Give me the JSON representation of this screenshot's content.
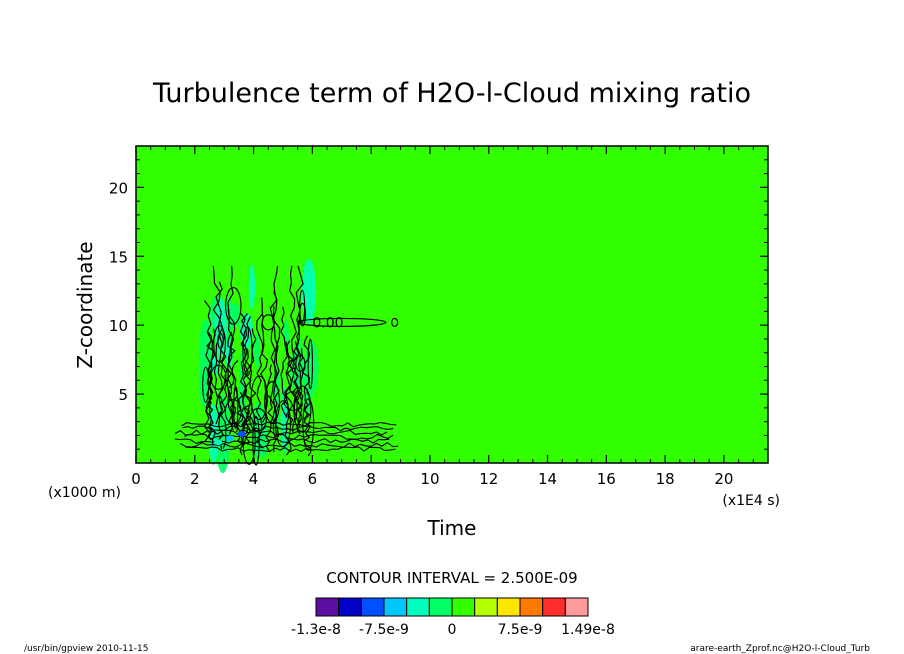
{
  "chart_data": {
    "type": "heatmap",
    "title": "Turbulence term of H2O-l-Cloud mixing ratio",
    "xlabel": "Time",
    "ylabel": "Z-coordinate",
    "x_unit_label": "(x1E4 s)",
    "y_unit_label": "(x1000 m)",
    "xlim": [
      0,
      21.5
    ],
    "ylim": [
      0,
      23
    ],
    "x_ticks": [
      0,
      2,
      4,
      6,
      8,
      10,
      12,
      14,
      16,
      18,
      20
    ],
    "y_ticks": [
      5,
      10,
      15,
      20
    ],
    "grid": false,
    "background_value": 0,
    "contour_interval_label": "CONTOUR INTERVAL = 2.500E-09",
    "inline_contour_label": "0.00",
    "colorbar": {
      "colors": [
        "#5b0fa0",
        "#0000c8",
        "#0050ff",
        "#00c8ff",
        "#00ffbe",
        "#00ff64",
        "#32ff00",
        "#b4ff00",
        "#ffe600",
        "#ff7800",
        "#ff2d2d",
        "#ff9b9b"
      ],
      "tick_labels": [
        "-1.3e-8",
        "-7.5e-9",
        "0",
        "7.5e-9",
        "1.49e-8"
      ]
    },
    "features": [
      {
        "x_range": [
          2.3,
          6.0
        ],
        "z_range": [
          0.5,
          14.3
        ],
        "description": "active turbulence region with dense contours"
      },
      {
        "x_range": [
          1.3,
          9.0
        ],
        "z_range": [
          1.0,
          2.8
        ],
        "description": "low-level contour band"
      },
      {
        "x_range": [
          5.5,
          8.5
        ],
        "z_range": [
          9.8,
          10.6
        ],
        "description": "elongated contour at z ~ 10"
      }
    ]
  },
  "footer": {
    "left": "/usr/bin/gpview  2010-11-15",
    "right": "arare-earth_Zprof.nc@H2O-l-Cloud_Turb"
  },
  "colors": {
    "field": "#32ff00",
    "contour": "#000000",
    "axes": "#000000"
  }
}
